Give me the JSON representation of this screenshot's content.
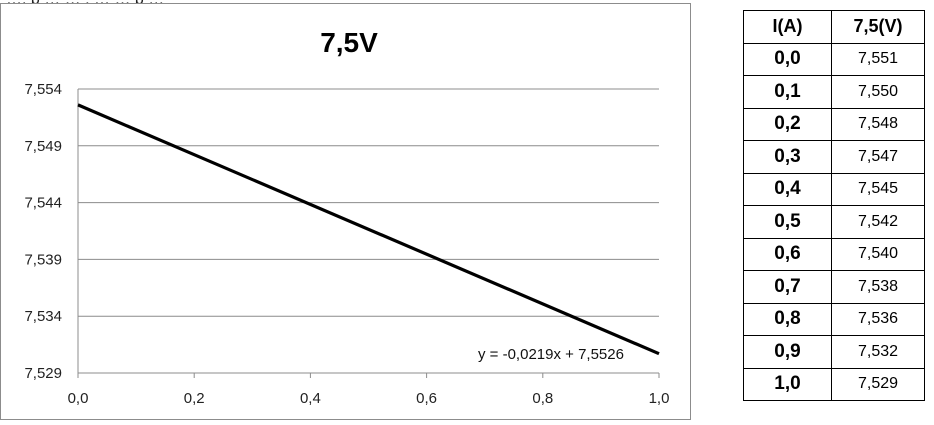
{
  "top_fragment": "…, p … … , … … p …",
  "chart_data": {
    "type": "line",
    "title": "7,5V",
    "xlabel": "",
    "ylabel": "",
    "xlim": [
      0.0,
      1.0
    ],
    "ylim": [
      7.529,
      7.554
    ],
    "x_ticks": [
      0.0,
      0.2,
      0.4,
      0.6,
      0.8,
      1.0
    ],
    "x_tick_labels": [
      "0,0",
      "0,2",
      "0,4",
      "0,6",
      "0,8",
      "1,0"
    ],
    "y_ticks": [
      7.554,
      7.549,
      7.544,
      7.539,
      7.534,
      7.529
    ],
    "y_tick_labels": [
      "7,554",
      "7,549",
      "7,544",
      "7,539",
      "7,534",
      "7,529"
    ],
    "grid": "horizontal",
    "legend": "none",
    "series": [
      {
        "type": "trendline",
        "x": [
          0.0,
          1.0
        ],
        "y": [
          7.5526,
          7.5307
        ],
        "color": "#000000"
      }
    ],
    "annotation": "y = -0,0219x + 7,5526"
  },
  "table": {
    "headers": [
      "I(A)",
      "7,5(V)"
    ],
    "rows": [
      [
        "0,0",
        "7,551"
      ],
      [
        "0,1",
        "7,550"
      ],
      [
        "0,2",
        "7,548"
      ],
      [
        "0,3",
        "7,547"
      ],
      [
        "0,4",
        "7,545"
      ],
      [
        "0,5",
        "7,542"
      ],
      [
        "0,6",
        "7,540"
      ],
      [
        "0,7",
        "7,538"
      ],
      [
        "0,8",
        "7,536"
      ],
      [
        "0,9",
        "7,532"
      ],
      [
        "1,0",
        "7,529"
      ]
    ]
  }
}
